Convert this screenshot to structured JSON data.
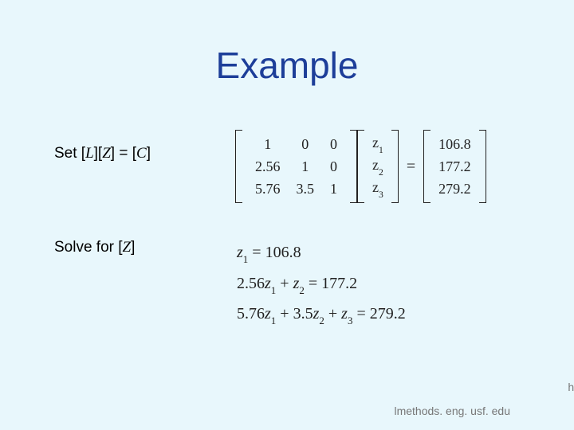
{
  "slide": {
    "title": "Example",
    "background_color": "#e8f7fc",
    "title_color": "#1d3e99"
  },
  "labels": {
    "set_prefix": "Set  [",
    "set_L": "L",
    "set_mid1": "][",
    "set_Z": "Z",
    "set_mid2": "] = [",
    "set_C": "C",
    "set_suffix": "]",
    "solve_prefix": "Solve for [",
    "solve_Z": "Z",
    "solve_suffix": "]"
  },
  "matrix": {
    "L": {
      "r0c0": "1",
      "r0c1": "0",
      "r0c2": "0",
      "r1c0": "2.56",
      "r1c1": "1",
      "r1c2": "0",
      "r2c0": "5.76",
      "r2c1": "3.5",
      "r2c2": "1"
    },
    "Z": {
      "z1_var": "z",
      "z1_sub": "1",
      "z2_var": "z",
      "z2_sub": "2",
      "z3_var": "z",
      "z3_sub": "3"
    },
    "C": {
      "c1": "106.8",
      "c2": "177.2",
      "c3": "279.2"
    },
    "equals": "="
  },
  "system": {
    "row1": {
      "var": "z",
      "sub": "1",
      "rest": " = 106.8"
    },
    "row2": {
      "a": "2.56",
      "v1": "z",
      "s1": "1",
      "plus1": " + ",
      "v2": "z",
      "s2": "2",
      "rest": " = 177.2"
    },
    "row3": {
      "a": "5.76",
      "v1": "z",
      "s1": "1",
      "plus1": " + 3.5",
      "v2": "z",
      "s2": "2",
      "plus2": " + ",
      "v3": "z",
      "s3": "3",
      "rest": " = 279.2"
    }
  },
  "footer": {
    "text": "lmethods. eng. usf. edu",
    "ht": "ht"
  }
}
